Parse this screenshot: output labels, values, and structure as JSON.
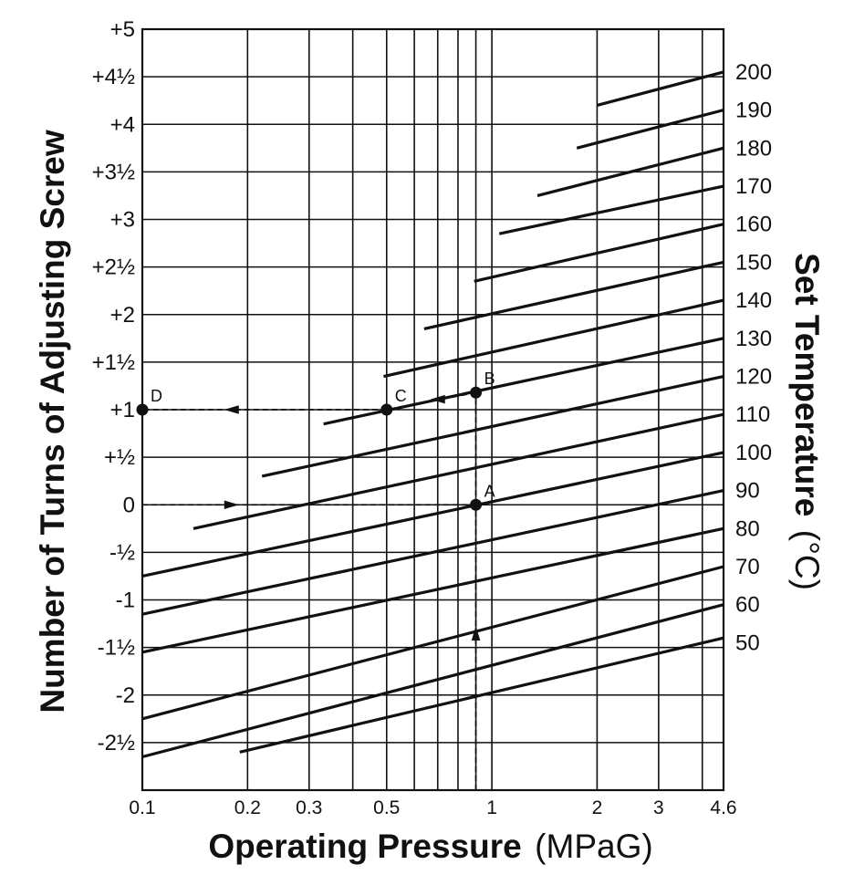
{
  "chart_data": {
    "type": "line",
    "xlabel": "Operating Pressure",
    "xunit": "(MPaG)",
    "ylabel": "Number of Turns of Adjusting Screw",
    "y2label": "Set Temperature",
    "y2unit": "(°C)",
    "x_scale": "log",
    "xlim": [
      0.1,
      4.6
    ],
    "ylim": [
      -3,
      5
    ],
    "grid": true,
    "x_gridlines": [
      0.1,
      0.2,
      0.3,
      0.4,
      0.5,
      0.6,
      0.7,
      0.8,
      0.9,
      1,
      2,
      3,
      4,
      4.6
    ],
    "x_ticks": [
      {
        "value": 0.1,
        "label": "0.1"
      },
      {
        "value": 0.2,
        "label": "0.2"
      },
      {
        "value": 0.3,
        "label": "0.3"
      },
      {
        "value": 0.5,
        "label": "0.5"
      },
      {
        "value": 1,
        "label": "1"
      },
      {
        "value": 2,
        "label": "2"
      },
      {
        "value": 3,
        "label": "3"
      },
      {
        "value": 4.6,
        "label": "4.6"
      }
    ],
    "y_ticks": [
      {
        "value": 5,
        "label": "+5"
      },
      {
        "value": 4.5,
        "label": "+4½"
      },
      {
        "value": 4,
        "label": "+4"
      },
      {
        "value": 3.5,
        "label": "+3½"
      },
      {
        "value": 3,
        "label": "+3"
      },
      {
        "value": 2.5,
        "label": "+2½"
      },
      {
        "value": 2,
        "label": "+2"
      },
      {
        "value": 1.5,
        "label": "+1½"
      },
      {
        "value": 1,
        "label": "+1"
      },
      {
        "value": 0.5,
        "label": "+½"
      },
      {
        "value": 0,
        "label": "0"
      },
      {
        "value": -0.5,
        "label": "-½"
      },
      {
        "value": -1,
        "label": "-1"
      },
      {
        "value": -1.5,
        "label": "-1½"
      },
      {
        "value": -2,
        "label": "-2"
      },
      {
        "value": -2.5,
        "label": "-2½"
      }
    ],
    "series": [
      {
        "name": "50",
        "x": [
          0.19,
          4.6
        ],
        "y": [
          -2.6,
          -1.4
        ]
      },
      {
        "name": "60",
        "x": [
          0.1,
          4.6
        ],
        "y": [
          -2.65,
          -1.05
        ]
      },
      {
        "name": "70",
        "x": [
          0.1,
          4.6
        ],
        "y": [
          -2.25,
          -0.65
        ]
      },
      {
        "name": "80",
        "x": [
          0.1,
          4.6
        ],
        "y": [
          -1.55,
          -0.25
        ]
      },
      {
        "name": "90",
        "x": [
          0.1,
          4.6
        ],
        "y": [
          -1.15,
          0.15
        ]
      },
      {
        "name": "100",
        "x": [
          0.1,
          4.6
        ],
        "y": [
          -0.75,
          0.55
        ]
      },
      {
        "name": "110",
        "x": [
          0.14,
          4.6
        ],
        "y": [
          -0.25,
          0.95
        ]
      },
      {
        "name": "120",
        "x": [
          0.22,
          4.6
        ],
        "y": [
          0.3,
          1.35
        ]
      },
      {
        "name": "130",
        "x": [
          0.33,
          4.6
        ],
        "y": [
          0.85,
          1.75
        ]
      },
      {
        "name": "140",
        "x": [
          0.49,
          4.6
        ],
        "y": [
          1.35,
          2.15
        ]
      },
      {
        "name": "150",
        "x": [
          0.64,
          4.6
        ],
        "y": [
          1.85,
          2.55
        ]
      },
      {
        "name": "160",
        "x": [
          0.89,
          4.6
        ],
        "y": [
          2.35,
          2.95
        ]
      },
      {
        "name": "170",
        "x": [
          1.05,
          4.6
        ],
        "y": [
          2.85,
          3.35
        ]
      },
      {
        "name": "180",
        "x": [
          1.35,
          4.6
        ],
        "y": [
          3.25,
          3.75
        ]
      },
      {
        "name": "190",
        "x": [
          1.75,
          4.6
        ],
        "y": [
          3.75,
          4.15
        ]
      },
      {
        "name": "200",
        "x": [
          2.0,
          4.6
        ],
        "y": [
          4.2,
          4.55
        ]
      }
    ],
    "right_labels": [
      {
        "label": "200",
        "y": 4.55
      },
      {
        "label": "190",
        "y": 4.15
      },
      {
        "label": "180",
        "y": 3.75
      },
      {
        "label": "170",
        "y": 3.35
      },
      {
        "label": "160",
        "y": 2.95
      },
      {
        "label": "150",
        "y": 2.55
      },
      {
        "label": "140",
        "y": 2.15
      },
      {
        "label": "130",
        "y": 1.75
      },
      {
        "label": "120",
        "y": 1.35
      },
      {
        "label": "110",
        "y": 0.95
      },
      {
        "label": "100",
        "y": 0.55
      },
      {
        "label": "90",
        "y": 0.15
      },
      {
        "label": "80",
        "y": -0.25
      },
      {
        "label": "70",
        "y": -0.65
      },
      {
        "label": "60",
        "y": -1.05
      },
      {
        "label": "50",
        "y": -1.45
      }
    ],
    "points": [
      {
        "label": "A",
        "x": 0.9,
        "y": 0
      },
      {
        "label": "B",
        "x": 0.9,
        "y": 1.18
      },
      {
        "label": "C",
        "x": 0.5,
        "y": 1.0
      },
      {
        "label": "D",
        "x": 0.1,
        "y": 1.0
      }
    ],
    "guides": [
      {
        "from": [
          0.9,
          -3
        ],
        "to": [
          0.9,
          0
        ]
      },
      {
        "from": [
          0.1,
          0
        ],
        "to": [
          0.9,
          0
        ]
      },
      {
        "from": [
          0.9,
          0
        ],
        "to": [
          0.9,
          1.18
        ]
      },
      {
        "from": [
          0.9,
          1.18
        ],
        "to": [
          0.5,
          1.0
        ]
      },
      {
        "from": [
          0.5,
          1.0
        ],
        "to": [
          0.1,
          1.0
        ]
      }
    ]
  }
}
